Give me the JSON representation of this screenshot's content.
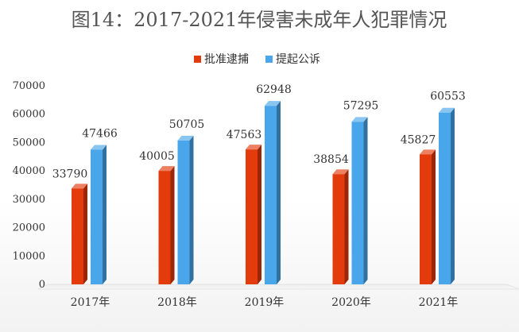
{
  "chart_data": {
    "type": "bar",
    "title": "图14：2017-2021年侵害未成年人犯罪情况",
    "categories": [
      "2017年",
      "2018年",
      "2019年",
      "2020年",
      "2021年"
    ],
    "series": [
      {
        "name": "批准逮捕",
        "color": "#e33b0c",
        "values": [
          33790,
          40005,
          47563,
          38854,
          45827
        ]
      },
      {
        "name": "提起公诉",
        "color": "#4aa6ea",
        "values": [
          47466,
          50705,
          62948,
          57295,
          60553
        ]
      }
    ],
    "ylim": [
      0,
      70000
    ],
    "yticks": [
      0,
      10000,
      20000,
      30000,
      40000,
      50000,
      60000,
      70000
    ],
    "grid": false,
    "legend": "top-center"
  }
}
